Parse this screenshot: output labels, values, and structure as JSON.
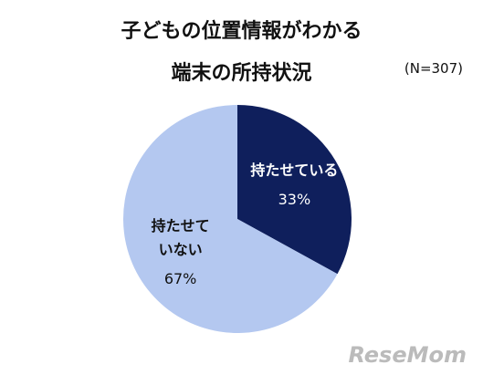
{
  "chart_data": {
    "type": "pie",
    "title": [
      "子どもの位置情報がわかる",
      "端末の所持状況"
    ],
    "subtitle": "(N=307)",
    "series": [
      {
        "name": "持たせている",
        "color": "#0f1f5c",
        "values": [
          33
        ],
        "value_labels": [
          "33%"
        ],
        "label_color": "#ffffff"
      },
      {
        "name": "持たせていない",
        "color": "#b4c8f0",
        "values": [
          67
        ],
        "value_labels": [
          "67%"
        ],
        "label_color": "#111111"
      }
    ],
    "watermark": "ReseMom"
  }
}
